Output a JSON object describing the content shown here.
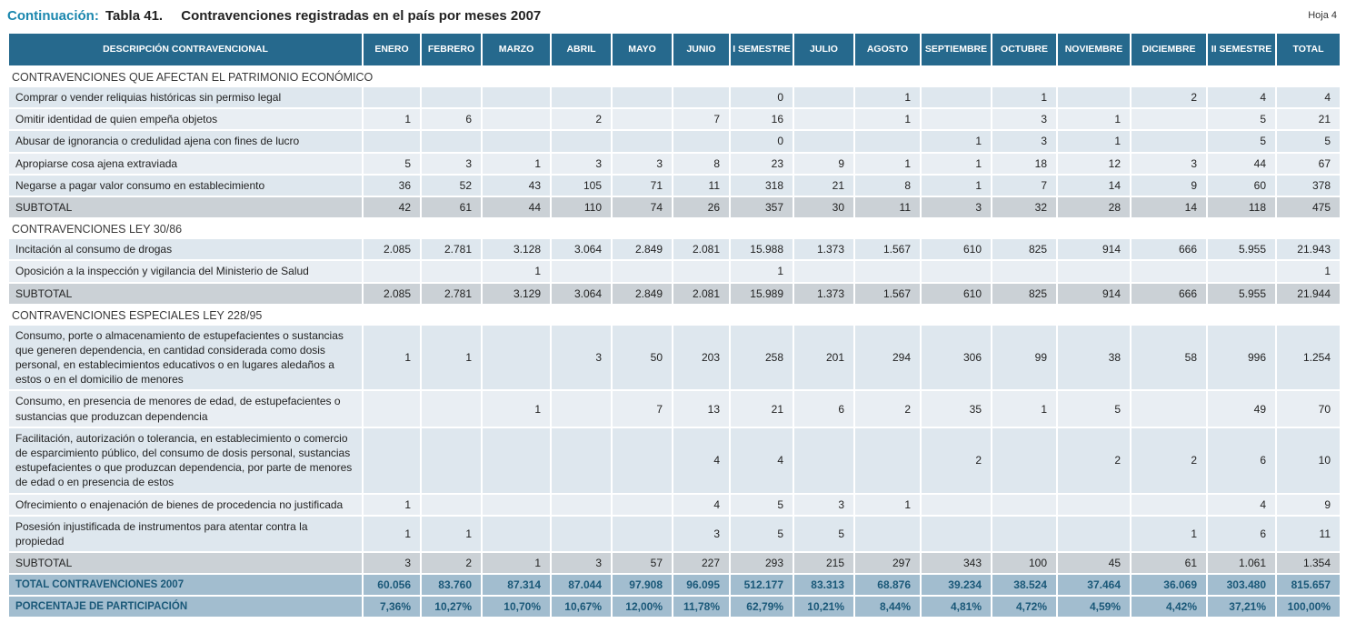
{
  "page": {
    "title_prefix": "Continuación:",
    "title_table": "Tabla 41.",
    "title_text": "Contravenciones registradas en el país por meses 2007",
    "sheet_label": "Hoja 4"
  },
  "colors": {
    "header_bg": "#26698d",
    "accent_title": "#1b87ae",
    "row_base": "#dee7ee",
    "row_alt": "#e9eef3",
    "subtotal_bg": "#cbd1d6",
    "total_bg": "#a2bdcf",
    "total_text": "#1a5878"
  },
  "table": {
    "columns": [
      {
        "id": "descripcion",
        "label": "DESCRIPCIÓN CONTRAVENCIONAL"
      },
      {
        "id": "enero",
        "label": "ENERO"
      },
      {
        "id": "febrero",
        "label": "FEBRERO"
      },
      {
        "id": "marzo",
        "label": "MARZO"
      },
      {
        "id": "abril",
        "label": "ABRIL"
      },
      {
        "id": "mayo",
        "label": "MAYO"
      },
      {
        "id": "junio",
        "label": "JUNIO"
      },
      {
        "id": "i-semestre",
        "label": "I SEMESTRE"
      },
      {
        "id": "julio",
        "label": "JULIO"
      },
      {
        "id": "agosto",
        "label": "AGOSTO"
      },
      {
        "id": "septiembre",
        "label": "SEPTIEMBRE"
      },
      {
        "id": "octubre",
        "label": "OCTUBRE"
      },
      {
        "id": "noviembre",
        "label": "NOVIEMBRE"
      },
      {
        "id": "diciembre",
        "label": "DICIEMBRE"
      },
      {
        "id": "ii-semestre",
        "label": "II SEMESTRE"
      },
      {
        "id": "total",
        "label": "TOTAL"
      }
    ],
    "rows": [
      {
        "type": "section",
        "label": "CONTRAVENCIONES QUE AFECTAN EL PATRIMONIO ECONÓMICO"
      },
      {
        "type": "data",
        "label": "Comprar  o vender reliquias históricas sin permiso legal",
        "values": [
          "",
          "",
          "",
          "",
          "",
          "",
          "0",
          "",
          "1",
          "",
          "1",
          "",
          "2",
          "4",
          "4"
        ]
      },
      {
        "type": "data",
        "label": "Omitir identidad de quien empeña objetos",
        "values": [
          "1",
          "6",
          "",
          "2",
          "",
          "7",
          "16",
          "",
          "1",
          "",
          "3",
          "1",
          "",
          "5",
          "21"
        ]
      },
      {
        "type": "data",
        "label": "Abusar de ignorancia o credulidad ajena con fines  de lucro",
        "values": [
          "",
          "",
          "",
          "",
          "",
          "",
          "0",
          "",
          "",
          "1",
          "3",
          "1",
          "",
          "5",
          "5"
        ]
      },
      {
        "type": "data",
        "label": "Apropiarse cosa ajena extraviada",
        "values": [
          "5",
          "3",
          "1",
          "3",
          "3",
          "8",
          "23",
          "9",
          "1",
          "1",
          "18",
          "12",
          "3",
          "44",
          "67"
        ]
      },
      {
        "type": "data",
        "label": "Negarse a pagar valor consumo en establecimiento",
        "values": [
          "36",
          "52",
          "43",
          "105",
          "71",
          "11",
          "318",
          "21",
          "8",
          "1",
          "7",
          "14",
          "9",
          "60",
          "378"
        ]
      },
      {
        "type": "subtotal",
        "label": "SUBTOTAL",
        "values": [
          "42",
          "61",
          "44",
          "110",
          "74",
          "26",
          "357",
          "30",
          "11",
          "3",
          "32",
          "28",
          "14",
          "118",
          "475"
        ]
      },
      {
        "type": "section",
        "label": "CONTRAVENCIONES LEY 30/86"
      },
      {
        "type": "data",
        "label": "Incitación al consumo de drogas",
        "values": [
          "2.085",
          "2.781",
          "3.128",
          "3.064",
          "2.849",
          "2.081",
          "15.988",
          "1.373",
          "1.567",
          "610",
          "825",
          "914",
          "666",
          "5.955",
          "21.943"
        ]
      },
      {
        "type": "data",
        "label": "Oposición a la inspección y vigilancia del Ministerio de Salud",
        "values": [
          "",
          "",
          "1",
          "",
          "",
          "",
          "1",
          "",
          "",
          "",
          "",
          "",
          "",
          "",
          "1"
        ]
      },
      {
        "type": "subtotal",
        "label": "SUBTOTAL",
        "values": [
          "2.085",
          "2.781",
          "3.129",
          "3.064",
          "2.849",
          "2.081",
          "15.989",
          "1.373",
          "1.567",
          "610",
          "825",
          "914",
          "666",
          "5.955",
          "21.944"
        ]
      },
      {
        "type": "section",
        "label": "CONTRAVENCIONES ESPECIALES LEY 228/95"
      },
      {
        "type": "data",
        "label": "Consumo, porte o almacenamiento de estupefacientes o sustancias que generen dependencia, en cantidad considerada como dosis personal, en establecimientos educativos o en lugares aledaños a estos o en el domicilio de menores",
        "values": [
          "1",
          "1",
          "",
          "3",
          "50",
          "203",
          "258",
          "201",
          "294",
          "306",
          "99",
          "38",
          "58",
          "996",
          "1.254"
        ]
      },
      {
        "type": "data",
        "label": "Consumo, en presencia de menores de edad, de estupefacientes o sustancias que produzcan dependencia",
        "values": [
          "",
          "",
          "1",
          "",
          "7",
          "13",
          "21",
          "6",
          "2",
          "35",
          "1",
          "5",
          "",
          "49",
          "70"
        ]
      },
      {
        "type": "data",
        "label": "Facilitación, autorización o tolerancia, en establecimiento o comercio de esparcimiento público, del consumo de dosis personal, sustancias estupefacientes o que produzcan dependencia, por parte de menores de edad o en presencia de estos",
        "values": [
          "",
          "",
          "",
          "",
          "",
          "4",
          "4",
          "",
          "",
          "2",
          "",
          "2",
          "2",
          "6",
          "10"
        ]
      },
      {
        "type": "data",
        "label": "Ofrecimiento o enajenación de bienes de procedencia no justificada",
        "values": [
          "1",
          "",
          "",
          "",
          "",
          "4",
          "5",
          "3",
          "1",
          "",
          "",
          "",
          "",
          "4",
          "9"
        ]
      },
      {
        "type": "data",
        "label": "Posesión injustificada de instrumentos para atentar contra la propiedad",
        "values": [
          "1",
          "1",
          "",
          "",
          "",
          "3",
          "5",
          "5",
          "",
          "",
          "",
          "",
          "1",
          "6",
          "11"
        ]
      },
      {
        "type": "subtotal",
        "label": "SUBTOTAL",
        "values": [
          "3",
          "2",
          "1",
          "3",
          "57",
          "227",
          "293",
          "215",
          "297",
          "343",
          "100",
          "45",
          "61",
          "1.061",
          "1.354"
        ]
      },
      {
        "type": "total",
        "label": "TOTAL CONTRAVENCIONES 2007",
        "values": [
          "60.056",
          "83.760",
          "87.314",
          "87.044",
          "97.908",
          "96.095",
          "512.177",
          "83.313",
          "68.876",
          "39.234",
          "38.524",
          "37.464",
          "36.069",
          "303.480",
          "815.657"
        ]
      },
      {
        "type": "percent",
        "label": "PORCENTAJE DE PARTICIPACIÓN",
        "values": [
          "7,36%",
          "10,27%",
          "10,70%",
          "10,67%",
          "12,00%",
          "11,78%",
          "62,79%",
          "10,21%",
          "8,44%",
          "4,81%",
          "4,72%",
          "4,59%",
          "4,42%",
          "37,21%",
          "100,00%"
        ]
      }
    ]
  }
}
